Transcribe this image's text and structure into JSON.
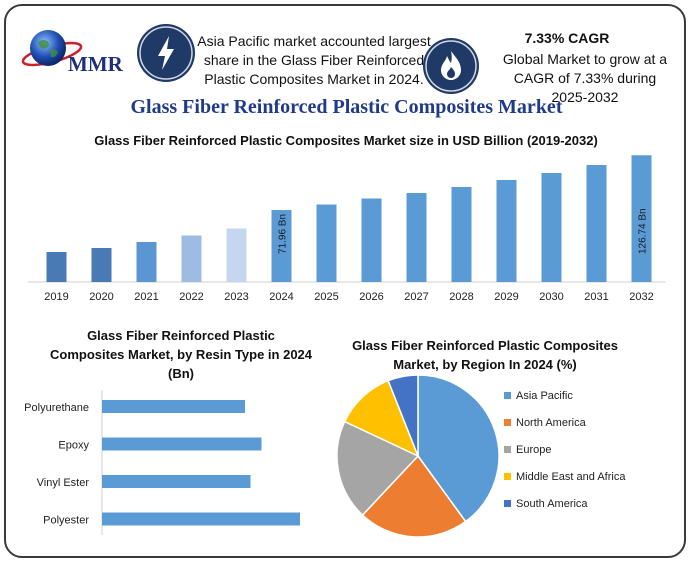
{
  "header": {
    "logo_text": "MMR",
    "info1": "Asia Pacific market accounted largest share in the Glass Fiber Reinforced Plastic Composites Market in 2024.",
    "cagr_title": "7.33% CAGR",
    "cagr_text": "Global Market to grow at a CAGR of 7.33% during 2025-2032",
    "main_title": "Glass Fiber Reinforced Plastic Composites Market"
  },
  "chart_data": [
    {
      "type": "bar",
      "title": "Glass Fiber Reinforced Plastic Composites Market size in USD Billion (2019-2032)",
      "categories": [
        "2019",
        "2020",
        "2021",
        "2022",
        "2023",
        "2024",
        "2025",
        "2026",
        "2027",
        "2028",
        "2029",
        "2030",
        "2031",
        "2032"
      ],
      "values": [
        30.0,
        34.0,
        40.0,
        46.5,
        53.5,
        71.96,
        77.5,
        83.5,
        89.0,
        95.0,
        102.0,
        109.0,
        117.0,
        126.74
      ],
      "bar_colors": [
        "#4a7ab3",
        "#4a7ab3",
        "#5b95d3",
        "#9dbbe3",
        "#c5d7ef",
        "#5b9bd5",
        "#5b9bd5",
        "#5b9bd5",
        "#5b9bd5",
        "#5b9bd5",
        "#5b9bd5",
        "#5b9bd5",
        "#5b9bd5",
        "#5b9bd5"
      ],
      "data_labels": [
        {
          "category": "2024",
          "text": "71.96 Bn"
        },
        {
          "category": "2032",
          "text": "126.74 Bn"
        }
      ],
      "ylim": [
        0,
        130
      ],
      "grid": false
    },
    {
      "type": "bar",
      "orientation": "horizontal",
      "title": "Glass Fiber Reinforced Plastic Composites Market, by Resin Type in 2024 (Bn)",
      "categories": [
        "Polyurethane",
        "Epoxy",
        "Vinyl Ester",
        "Polyester"
      ],
      "values": [
        13.0,
        14.5,
        13.5,
        18.0
      ],
      "xlim": [
        0,
        20
      ],
      "color": "#5b9bd5"
    },
    {
      "type": "pie",
      "title": "Glass Fiber Reinforced Plastic Composites Market, by Region In 2024 (%)",
      "labels": [
        "Asia Pacific",
        "North America",
        "Europe",
        "Middle East and Africa",
        "South America"
      ],
      "values": [
        40,
        22,
        20,
        12,
        6
      ],
      "colors": [
        "#5b9bd5",
        "#ed7d31",
        "#a5a5a5",
        "#ffc000",
        "#4472c4"
      ],
      "legend": "right"
    }
  ]
}
